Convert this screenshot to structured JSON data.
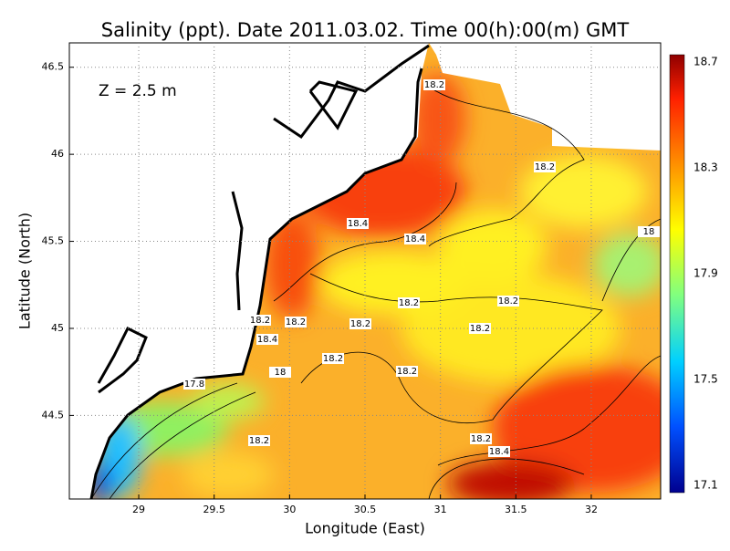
{
  "title": "Salinity (ppt). Date 2011.03.02. Time 00(h):00(m) GMT",
  "depth_label": "Z = 2.5 m",
  "x_axis": {
    "label": "Longitude (East)",
    "lim": [
      28.54,
      32.46
    ],
    "ticks": [
      29,
      29.5,
      30,
      30.5,
      31,
      31.5,
      32
    ]
  },
  "y_axis": {
    "label": "Latitude (North)",
    "lim": [
      44.02,
      46.64
    ],
    "ticks": [
      44.5,
      45,
      45.5,
      46,
      46.5
    ]
  },
  "colorbar": {
    "lim": [
      17.072,
      18.728
    ],
    "ticks": [
      17.1,
      17.5,
      17.9,
      18.3,
      18.7
    ]
  },
  "contour_labels": [
    "18.2",
    "18.2",
    "18.4",
    "18.4",
    "18",
    "18.2",
    "18.2",
    "18.2",
    "18.2",
    "18.2",
    "18.4",
    "18.2",
    "18",
    "17.8",
    "18.2",
    "18.2",
    "18.2",
    "18.2",
    "18.4"
  ]
}
